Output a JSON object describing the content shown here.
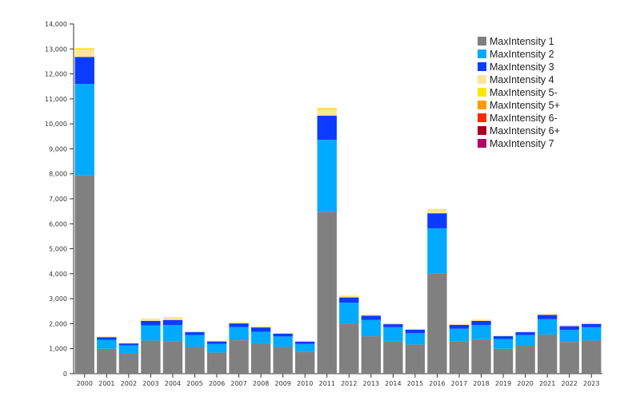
{
  "chart_data": {
    "type": "bar",
    "stacked": true,
    "title": "",
    "xlabel": "",
    "ylabel": "",
    "ylim": [
      0,
      14000
    ],
    "yticks": [
      0,
      1000,
      2000,
      3000,
      4000,
      5000,
      6000,
      7000,
      8000,
      9000,
      10000,
      11000,
      12000,
      13000,
      14000
    ],
    "ytick_labels": [
      "0",
      "1,000",
      "2,000",
      "3,000",
      "4,000",
      "5,000",
      "6,000",
      "7,000",
      "8,000",
      "9,000",
      "10,000",
      "11,000",
      "12,000",
      "13,000",
      "14,000"
    ],
    "grid": false,
    "legend_position": "top-right",
    "categories": [
      "2000",
      "2001",
      "2002",
      "2003",
      "2004",
      "2005",
      "2006",
      "2007",
      "2008",
      "2009",
      "2010",
      "2011",
      "2012",
      "2013",
      "2014",
      "2015",
      "2016",
      "2017",
      "2018",
      "2019",
      "2020",
      "2021",
      "2022",
      "2023"
    ],
    "series": [
      {
        "name": "MaxIntensity 1",
        "color": "#808080",
        "values": [
          7950,
          1000,
          800,
          1330,
          1300,
          1070,
          850,
          1340,
          1200,
          1070,
          870,
          6480,
          2010,
          1500,
          1300,
          1170,
          4000,
          1300,
          1370,
          1000,
          1150,
          1570,
          1270,
          1330
        ]
      },
      {
        "name": "MaxIntensity 2",
        "color": "#00aaff",
        "values": [
          3650,
          350,
          330,
          600,
          650,
          480,
          340,
          530,
          480,
          420,
          320,
          2880,
          830,
          650,
          560,
          450,
          1820,
          500,
          580,
          390,
          400,
          610,
          480,
          530
        ]
      },
      {
        "name": "MaxIntensity 3",
        "color": "#0a3cff",
        "values": [
          1080,
          110,
          80,
          180,
          200,
          110,
          100,
          140,
          170,
          110,
          90,
          970,
          210,
          170,
          120,
          140,
          600,
          150,
          160,
          110,
          110,
          170,
          150,
          130
        ]
      },
      {
        "name": "MaxIntensity 4",
        "color": "#fae696",
        "values": [
          290,
          30,
          20,
          80,
          90,
          40,
          30,
          50,
          40,
          30,
          30,
          230,
          70,
          50,
          50,
          40,
          140,
          40,
          60,
          30,
          30,
          40,
          40,
          40
        ]
      },
      {
        "name": "MaxIntensity 5-",
        "color": "#ffe600",
        "values": [
          60,
          0,
          0,
          10,
          20,
          0,
          0,
          0,
          0,
          0,
          0,
          60,
          10,
          0,
          0,
          0,
          30,
          0,
          0,
          0,
          0,
          0,
          0,
          0
        ]
      },
      {
        "name": "MaxIntensity 5+",
        "color": "#ff9900",
        "values": [
          0,
          0,
          0,
          0,
          0,
          0,
          0,
          0,
          0,
          0,
          0,
          10,
          0,
          0,
          0,
          0,
          0,
          0,
          0,
          0,
          0,
          0,
          0,
          0
        ]
      },
      {
        "name": "MaxIntensity 6-",
        "color": "#ff2800",
        "values": [
          0,
          0,
          0,
          0,
          0,
          0,
          0,
          0,
          0,
          0,
          0,
          0,
          0,
          0,
          0,
          0,
          0,
          0,
          0,
          0,
          0,
          0,
          0,
          0
        ]
      },
      {
        "name": "MaxIntensity 6+",
        "color": "#a50021",
        "values": [
          0,
          0,
          0,
          0,
          0,
          0,
          0,
          0,
          0,
          0,
          0,
          0,
          0,
          0,
          0,
          0,
          0,
          0,
          0,
          0,
          0,
          0,
          0,
          0
        ]
      },
      {
        "name": "MaxIntensity 7",
        "color": "#b40068",
        "values": [
          0,
          0,
          0,
          0,
          0,
          0,
          0,
          0,
          0,
          0,
          0,
          0,
          0,
          0,
          0,
          0,
          0,
          0,
          0,
          0,
          0,
          0,
          0,
          0
        ]
      }
    ]
  }
}
